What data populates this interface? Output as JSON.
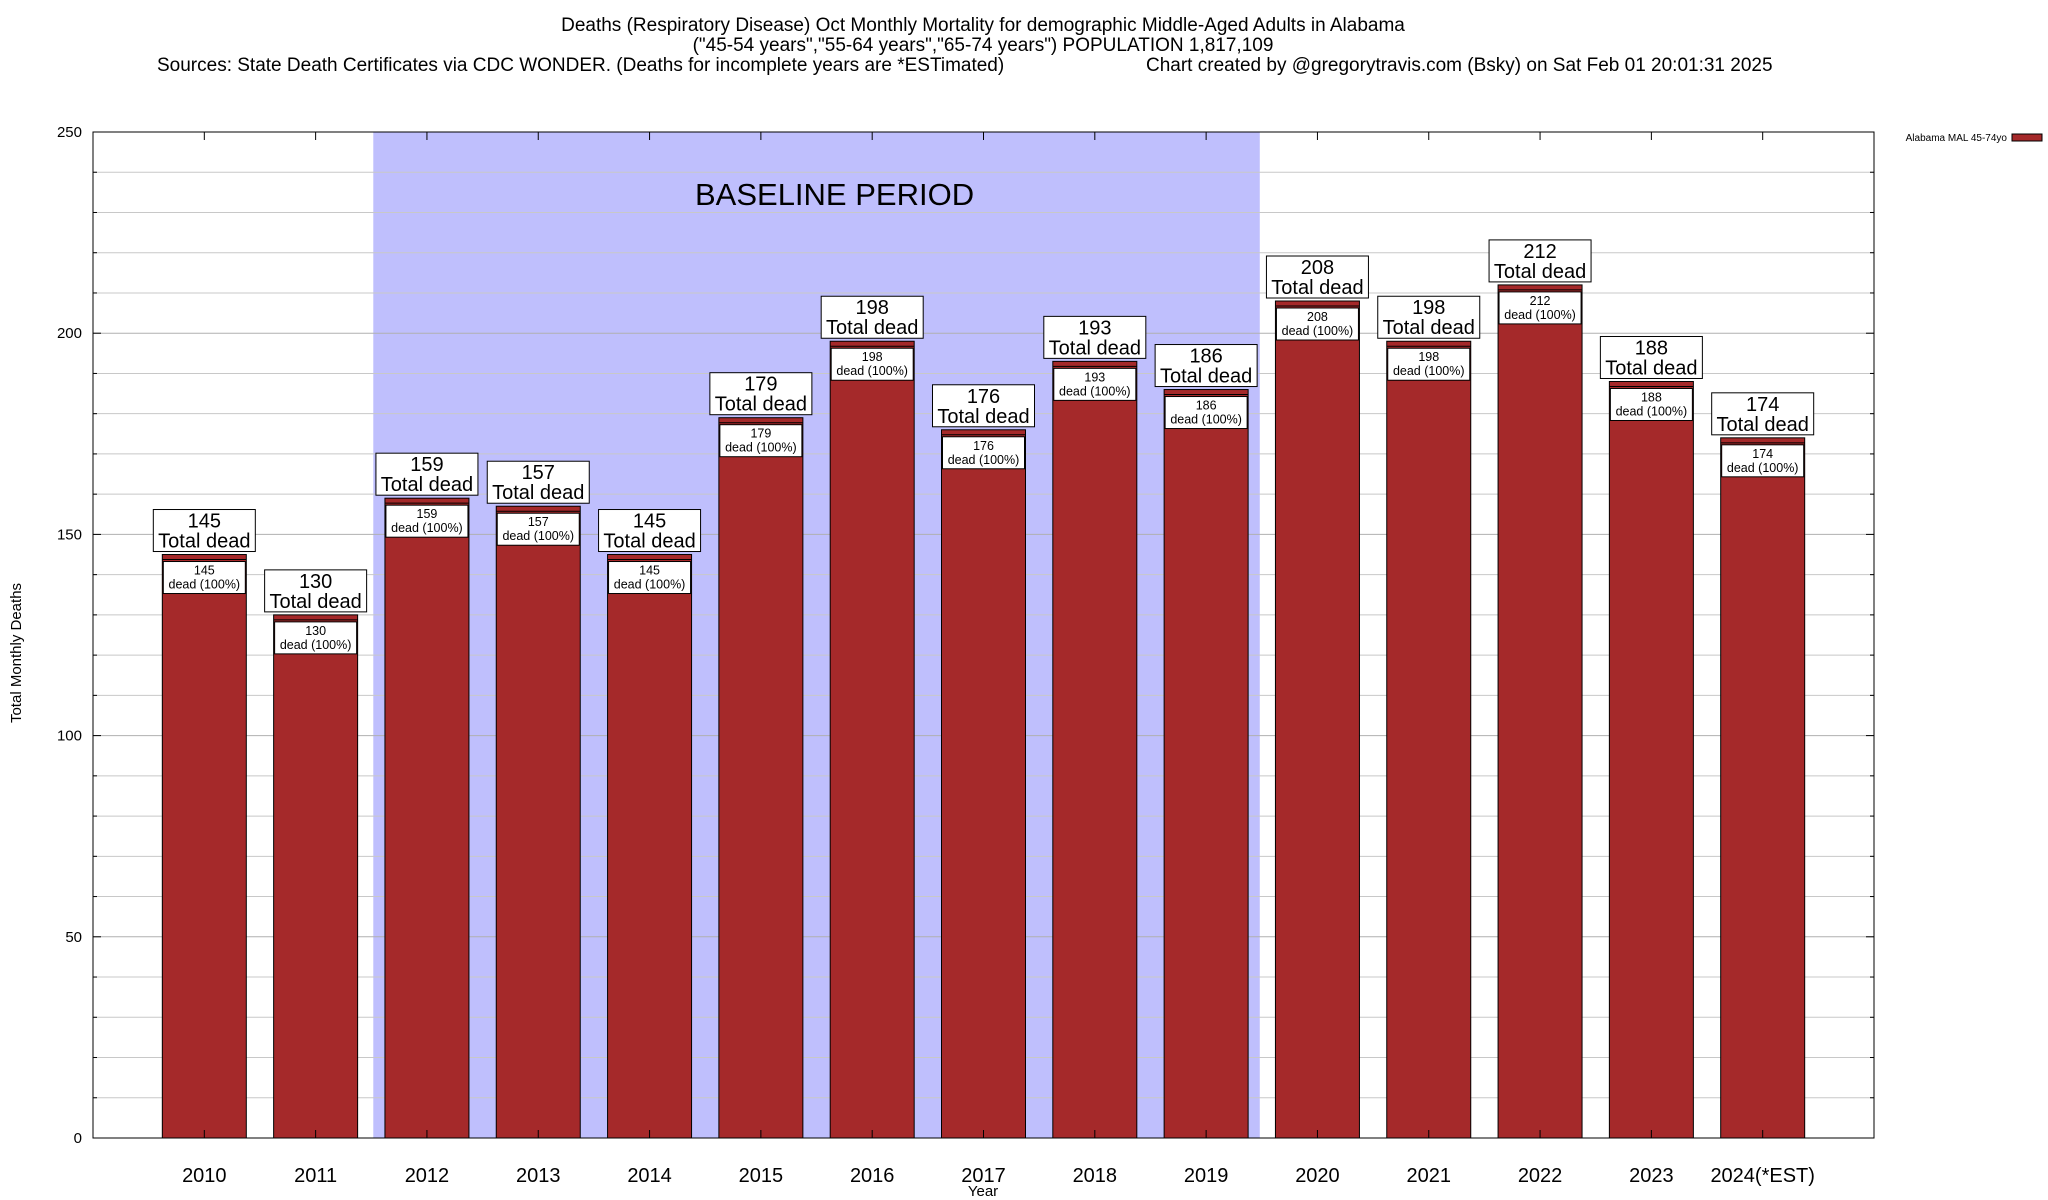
{
  "chart_data": {
    "type": "bar",
    "title_lines": [
      "Deaths (Respiratory Disease) Oct Monthly Mortality for demographic Middle-Aged Adults in Alabama",
      "(\"45-54 years\",\"55-64 years\",\"65-74 years\") POPULATION 1,817,109"
    ],
    "source": "Sources: State Death Certificates via CDC WONDER. (Deaths for incomplete years are *ESTimated)",
    "credit": "Chart created by @gregorytravis.com (Bsky) on Sat Feb 01 20:01:31 2025",
    "xlabel": "Year",
    "ylabel": "Total Monthly Deaths",
    "ylim": [
      0,
      250
    ],
    "yticks": [
      0,
      50,
      100,
      150,
      200,
      250
    ],
    "minor_step": 10,
    "grid": true,
    "categories": [
      "2010",
      "2011",
      "2012",
      "2013",
      "2014",
      "2015",
      "2016",
      "2017",
      "2018",
      "2019",
      "2020",
      "2021",
      "2022",
      "2023",
      "2024(*EST)"
    ],
    "series": [
      {
        "name": "Alabama MAL 45-74yo",
        "color": "#a5292a",
        "values": [
          145,
          130,
          159,
          157,
          145,
          179,
          198,
          176,
          193,
          186,
          208,
          198,
          212,
          188,
          174
        ]
      }
    ],
    "total_label": "Total dead",
    "segment_label": "dead (100%)",
    "baseline": {
      "label": "BASELINE PERIOD",
      "from": "2012",
      "to": "2019",
      "color": "#bfbffd"
    },
    "legend_position": "top-right"
  }
}
